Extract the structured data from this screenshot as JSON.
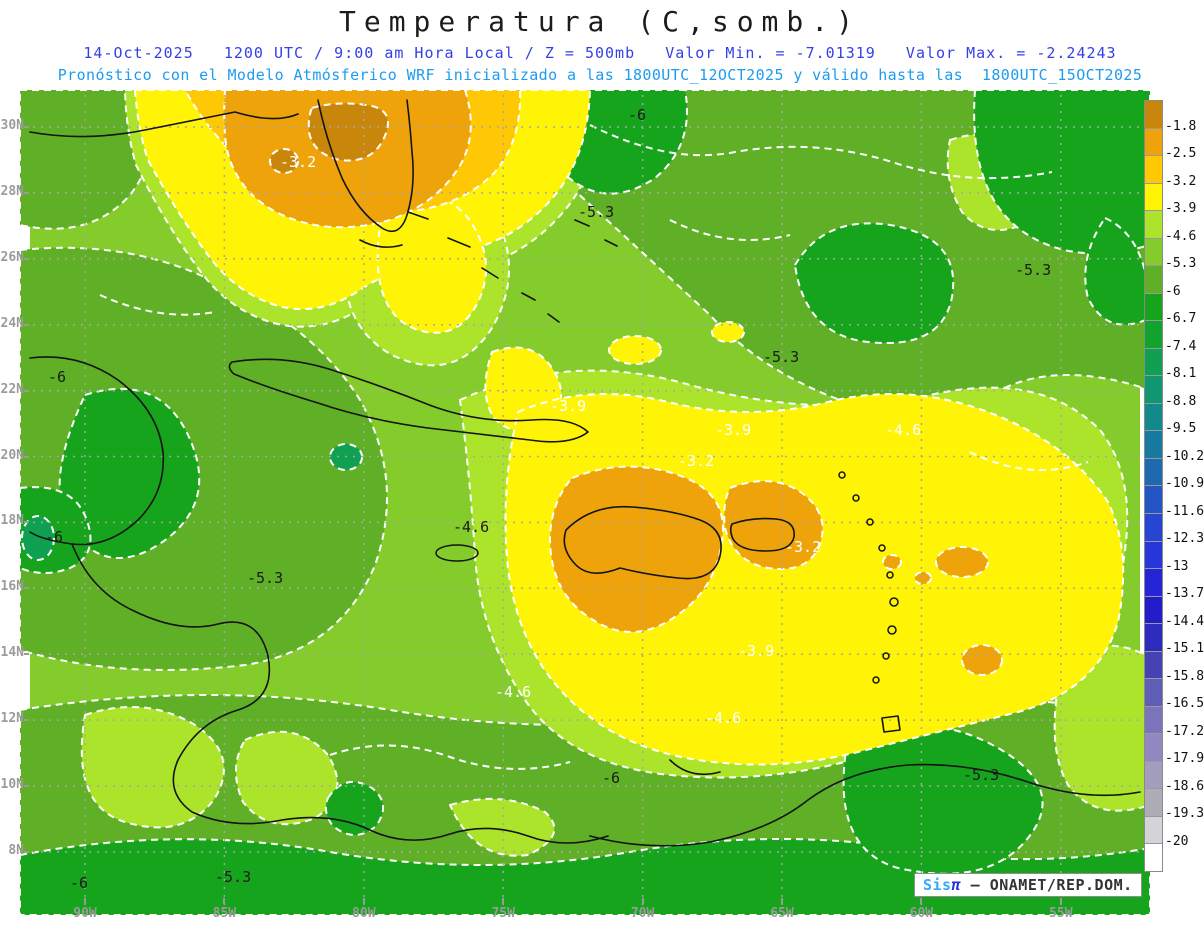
{
  "header": {
    "title": "Temperatura (C,somb.)",
    "subtitle1": "14-Oct-2025   1200 UTC / 9:00 am Hora Local / Z = 500mb   Valor Min. = -7.01319   Valor Max. = -2.24243",
    "subtitle2": "Pronóstico con el Modelo Atmósferico WRF inicializado a las 1800UTC_12OCT2025 y válido hasta las  1800UTC_15OCT2025",
    "title_color": "#1c1c1c",
    "subtitle1_color": "#3340E8",
    "subtitle2_color": "#1E9BF0"
  },
  "watermark": {
    "brand": "Sis",
    "pi": "π",
    "rest": " — ONAMET/REP.DOM.",
    "brand_color": "#33AAFF",
    "pi_color": "#2430D8"
  },
  "chart_data": {
    "type": "heatmap",
    "variant": "filled-contour-weather-map",
    "title": "Temperatura (C,somb.)",
    "valid_time": "14-Oct-2025 1200 UTC / 9:00 am Hora Local",
    "level": "Z = 500mb",
    "value_min": -7.01319,
    "value_max": -2.24243,
    "model": "WRF",
    "initialized": "1800UTC_12OCT2025",
    "valid_until": "1800UTC_15OCT2025",
    "units": "C",
    "contour_interval": 0.7,
    "grid": true,
    "grid_color": "#A6A6A6",
    "legend_position": "right",
    "x_ticks": [
      "90W",
      "85W",
      "80W",
      "75W",
      "70W",
      "65W",
      "60W",
      "55W"
    ],
    "y_ticks": [
      "30N",
      "28N",
      "26N",
      "24N",
      "22N",
      "20N",
      "18N",
      "16N",
      "14N",
      "12N",
      "10N",
      "8N"
    ],
    "colorbar_levels": [
      -1.8,
      -2.5,
      -3.2,
      -3.9,
      -4.6,
      -5.3,
      -6,
      -6.7,
      -7.4,
      -8.1,
      -8.8,
      -9.5,
      -10.2,
      -10.9,
      -11.6,
      -12.3,
      -13,
      -13.7,
      -14.4,
      -15.1,
      -15.8,
      -16.5,
      -17.2,
      -17.9,
      -18.6,
      -19.3,
      -20
    ],
    "colorbar_colors": [
      "#C8860B",
      "#EFA30B",
      "#FFC805",
      "#FFF405",
      "#ACE42C",
      "#84CC2C",
      "#5FAF27",
      "#16A41C",
      "#12A32E",
      "#0FA051",
      "#0E9771",
      "#128A8C",
      "#17799E",
      "#1E69B0",
      "#2356C4",
      "#2545D2",
      "#2736DA",
      "#2426D6",
      "#221CCB",
      "#2C2BBE",
      "#4543B4",
      "#605DB5",
      "#7B74BB",
      "#9288C1",
      "#A49DBE",
      "#AEACB6",
      "#D4D4D8",
      "#FFFFFF"
    ],
    "contour_labels": [
      {
        "t": "-6",
        "x": 598,
        "y": 20,
        "c": "b"
      },
      {
        "t": "-3.2",
        "x": 250,
        "y": 67,
        "c": "w"
      },
      {
        "t": "-5.3",
        "x": 548,
        "y": 117,
        "c": "b"
      },
      {
        "t": "-5.3",
        "x": 985,
        "y": 175,
        "c": "b"
      },
      {
        "t": "-6",
        "x": 18,
        "y": 282,
        "c": "b"
      },
      {
        "t": "-5.3",
        "x": 733,
        "y": 262,
        "c": "b"
      },
      {
        "t": "-3.9",
        "x": 520,
        "y": 311,
        "c": "w"
      },
      {
        "t": "-3.9",
        "x": 685,
        "y": 335,
        "c": "w"
      },
      {
        "t": "-4.6",
        "x": 855,
        "y": 335,
        "c": "w"
      },
      {
        "t": "-3.2",
        "x": 648,
        "y": 366,
        "c": "w"
      },
      {
        "t": "-6",
        "x": 15,
        "y": 442,
        "c": "b"
      },
      {
        "t": "-4.6",
        "x": 423,
        "y": 432,
        "c": "b"
      },
      {
        "t": "-3.2",
        "x": 755,
        "y": 452,
        "c": "w"
      },
      {
        "t": "-5.3",
        "x": 217,
        "y": 483,
        "c": "b"
      },
      {
        "t": "-3.9",
        "x": 708,
        "y": 556,
        "c": "w"
      },
      {
        "t": "-4.6",
        "x": 465,
        "y": 597,
        "c": "w"
      },
      {
        "t": "-4.6",
        "x": 675,
        "y": 623,
        "c": "w"
      },
      {
        "t": "-5.3",
        "x": 933,
        "y": 680,
        "c": "b"
      },
      {
        "t": "-6",
        "x": 572,
        "y": 683,
        "c": "b"
      },
      {
        "t": "-6",
        "x": 40,
        "y": 788,
        "c": "b"
      },
      {
        "t": "-5.3",
        "x": 185,
        "y": 782,
        "c": "b"
      }
    ]
  }
}
